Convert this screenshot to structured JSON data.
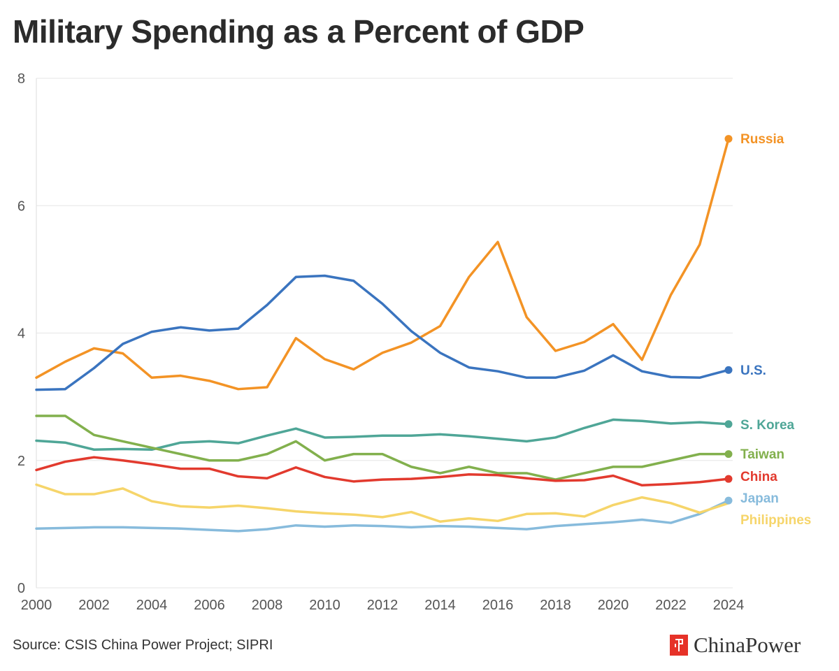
{
  "title": "Military Spending as a Percent of GDP",
  "source": "Source: CSIS China Power Project; SIPRI",
  "brand": {
    "name": "ChinaPower",
    "logo_icon": "china-power-logo",
    "color": "#e63228"
  },
  "chart_data": {
    "type": "line",
    "title": "Military Spending as a Percent of GDP",
    "xlabel": "",
    "ylabel": "",
    "xlim": [
      2000,
      2024
    ],
    "ylim": [
      0,
      8
    ],
    "x_ticks": [
      2000,
      2002,
      2004,
      2006,
      2008,
      2010,
      2012,
      2014,
      2016,
      2018,
      2020,
      2022,
      2024
    ],
    "y_ticks": [
      0,
      2,
      4,
      6,
      8
    ],
    "grid": "horizontal",
    "legend": "inline labels at line ends (right)",
    "x": [
      2000,
      2001,
      2002,
      2003,
      2004,
      2005,
      2006,
      2007,
      2008,
      2009,
      2010,
      2011,
      2012,
      2013,
      2014,
      2015,
      2016,
      2017,
      2018,
      2019,
      2020,
      2021,
      2022,
      2023,
      2024
    ],
    "series": [
      {
        "name": "Russia",
        "color": "#f39325",
        "values": [
          3.3,
          3.55,
          3.76,
          3.68,
          3.3,
          3.33,
          3.25,
          3.12,
          3.15,
          3.92,
          3.59,
          3.43,
          3.69,
          3.85,
          4.11,
          4.88,
          5.43,
          4.25,
          3.72,
          3.86,
          4.14,
          3.58,
          4.6,
          5.39,
          7.05
        ]
      },
      {
        "name": "U.S.",
        "color": "#3a74bf",
        "values": [
          3.11,
          3.12,
          3.45,
          3.83,
          4.02,
          4.09,
          4.04,
          4.07,
          4.44,
          4.88,
          4.9,
          4.82,
          4.46,
          4.03,
          3.69,
          3.46,
          3.4,
          3.3,
          3.3,
          3.41,
          3.65,
          3.4,
          3.31,
          3.3,
          3.42
        ]
      },
      {
        "name": "S. Korea",
        "color": "#4fa697",
        "values": [
          2.31,
          2.28,
          2.17,
          2.18,
          2.17,
          2.28,
          2.3,
          2.27,
          2.39,
          2.5,
          2.36,
          2.37,
          2.39,
          2.39,
          2.41,
          2.38,
          2.34,
          2.3,
          2.36,
          2.51,
          2.64,
          2.62,
          2.58,
          2.6,
          2.57
        ]
      },
      {
        "name": "Taiwan",
        "color": "#82b04d",
        "values": [
          2.7,
          2.7,
          2.4,
          2.3,
          2.2,
          2.1,
          2.0,
          2.0,
          2.1,
          2.3,
          2.0,
          2.1,
          2.1,
          1.9,
          1.8,
          1.9,
          1.8,
          1.8,
          1.7,
          1.8,
          1.9,
          1.9,
          2.0,
          2.1,
          2.1
        ]
      },
      {
        "name": "China",
        "color": "#e23a2e",
        "values": [
          1.85,
          1.98,
          2.05,
          2.0,
          1.94,
          1.87,
          1.87,
          1.75,
          1.72,
          1.89,
          1.74,
          1.67,
          1.7,
          1.71,
          1.74,
          1.78,
          1.77,
          1.72,
          1.68,
          1.69,
          1.76,
          1.61,
          1.63,
          1.66,
          1.71
        ]
      },
      {
        "name": "Japan",
        "color": "#87bbdc",
        "values": [
          0.93,
          0.94,
          0.95,
          0.95,
          0.94,
          0.93,
          0.91,
          0.89,
          0.92,
          0.98,
          0.96,
          0.98,
          0.97,
          0.95,
          0.97,
          0.96,
          0.94,
          0.92,
          0.97,
          1.0,
          1.03,
          1.07,
          1.02,
          1.16,
          1.37
        ]
      },
      {
        "name": "Philippines",
        "color": "#f6d56a",
        "values": [
          1.62,
          1.47,
          1.47,
          1.56,
          1.36,
          1.28,
          1.26,
          1.29,
          1.25,
          1.2,
          1.17,
          1.15,
          1.11,
          1.19,
          1.04,
          1.09,
          1.05,
          1.16,
          1.17,
          1.12,
          1.3,
          1.42,
          1.33,
          1.18,
          1.33
        ]
      }
    ]
  }
}
